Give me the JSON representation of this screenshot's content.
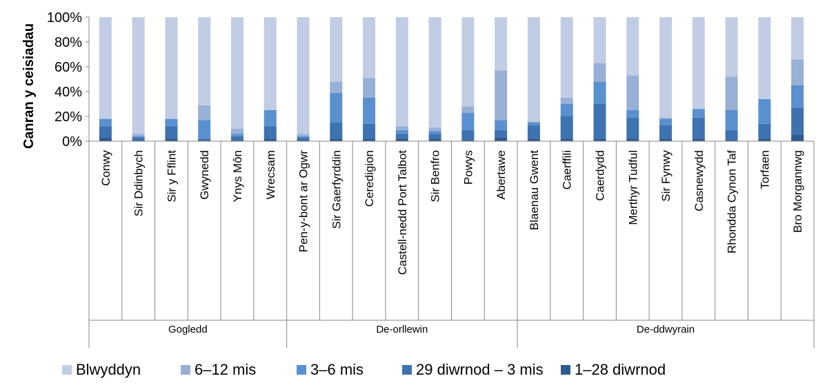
{
  "chart_data": {
    "type": "bar",
    "stacked": true,
    "title": "",
    "ylabel": "Canran y ceisiadau",
    "xlabel": "",
    "ylim": [
      0,
      100
    ],
    "yticks": [
      "0%",
      "20%",
      "40%",
      "60%",
      "80%",
      "100%"
    ],
    "grid": false,
    "legend_position": "bottom",
    "categories": [
      "Conwy",
      "Sir Ddinbych",
      "Sir y Fflint",
      "Gwynedd",
      "Ynys Môn",
      "Wrecsam",
      "Pen-y-bont ar Ogwr",
      "Sir Gaerfyrddin",
      "Ceredigion",
      "Castell-nedd Port Talbot",
      "Sir Benfro",
      "Powys",
      "Abertawe",
      "Blaenau Gwent",
      "Caerffili",
      "Caerdydd",
      "Merthyr Tudful",
      "Sir Fynwy",
      "Casnewydd",
      "Rhondda Cynon Taf",
      "Torfaen",
      "Bro Morgannwg"
    ],
    "groups": [
      {
        "name": "Gogledd",
        "start": 0,
        "end": 5
      },
      {
        "name": "De-orllewin",
        "start": 6,
        "end": 12
      },
      {
        "name": "De-ddwyrain",
        "start": 13,
        "end": 21
      }
    ],
    "series": [
      {
        "name": "1–28 diwrnod",
        "color": "#2f5a8f",
        "values": [
          3,
          1,
          2,
          1,
          1,
          2,
          1,
          2,
          2,
          2,
          2,
          1,
          3,
          2,
          2,
          2,
          2,
          2,
          2,
          1,
          2,
          5
        ]
      },
      {
        "name": "29 diwrnod – 3 mis",
        "color": "#3e72b0",
        "values": [
          9,
          2,
          10,
          1,
          3,
          10,
          2,
          13,
          12,
          4,
          4,
          8,
          6,
          11,
          18,
          28,
          17,
          11,
          17,
          8,
          12,
          22
        ]
      },
      {
        "name": "3–6 mis",
        "color": "#5a90d0",
        "values": [
          6,
          1,
          6,
          15,
          2,
          13,
          1,
          24,
          21,
          3,
          2,
          14,
          8,
          2,
          10,
          18,
          6,
          5,
          7,
          16,
          20,
          18
        ]
      },
      {
        "name": "6–12 mis",
        "color": "#98afd6",
        "values": [
          0,
          2,
          0,
          12,
          4,
          0,
          2,
          9,
          16,
          3,
          3,
          5,
          40,
          1,
          5,
          15,
          28,
          1,
          0,
          27,
          0,
          21
        ]
      },
      {
        "name": "Blwyddyn",
        "color": "#c1cde5",
        "values": [
          82,
          94,
          82,
          71,
          90,
          75,
          94,
          52,
          49,
          88,
          89,
          72,
          43,
          84,
          65,
          37,
          47,
          81,
          74,
          48,
          66,
          34
        ]
      }
    ],
    "legend_order": [
      "Blwyddyn",
      "6–12 mis",
      "3–6 mis",
      "29 diwrnod – 3 mis",
      "1–28 diwrnod"
    ]
  }
}
